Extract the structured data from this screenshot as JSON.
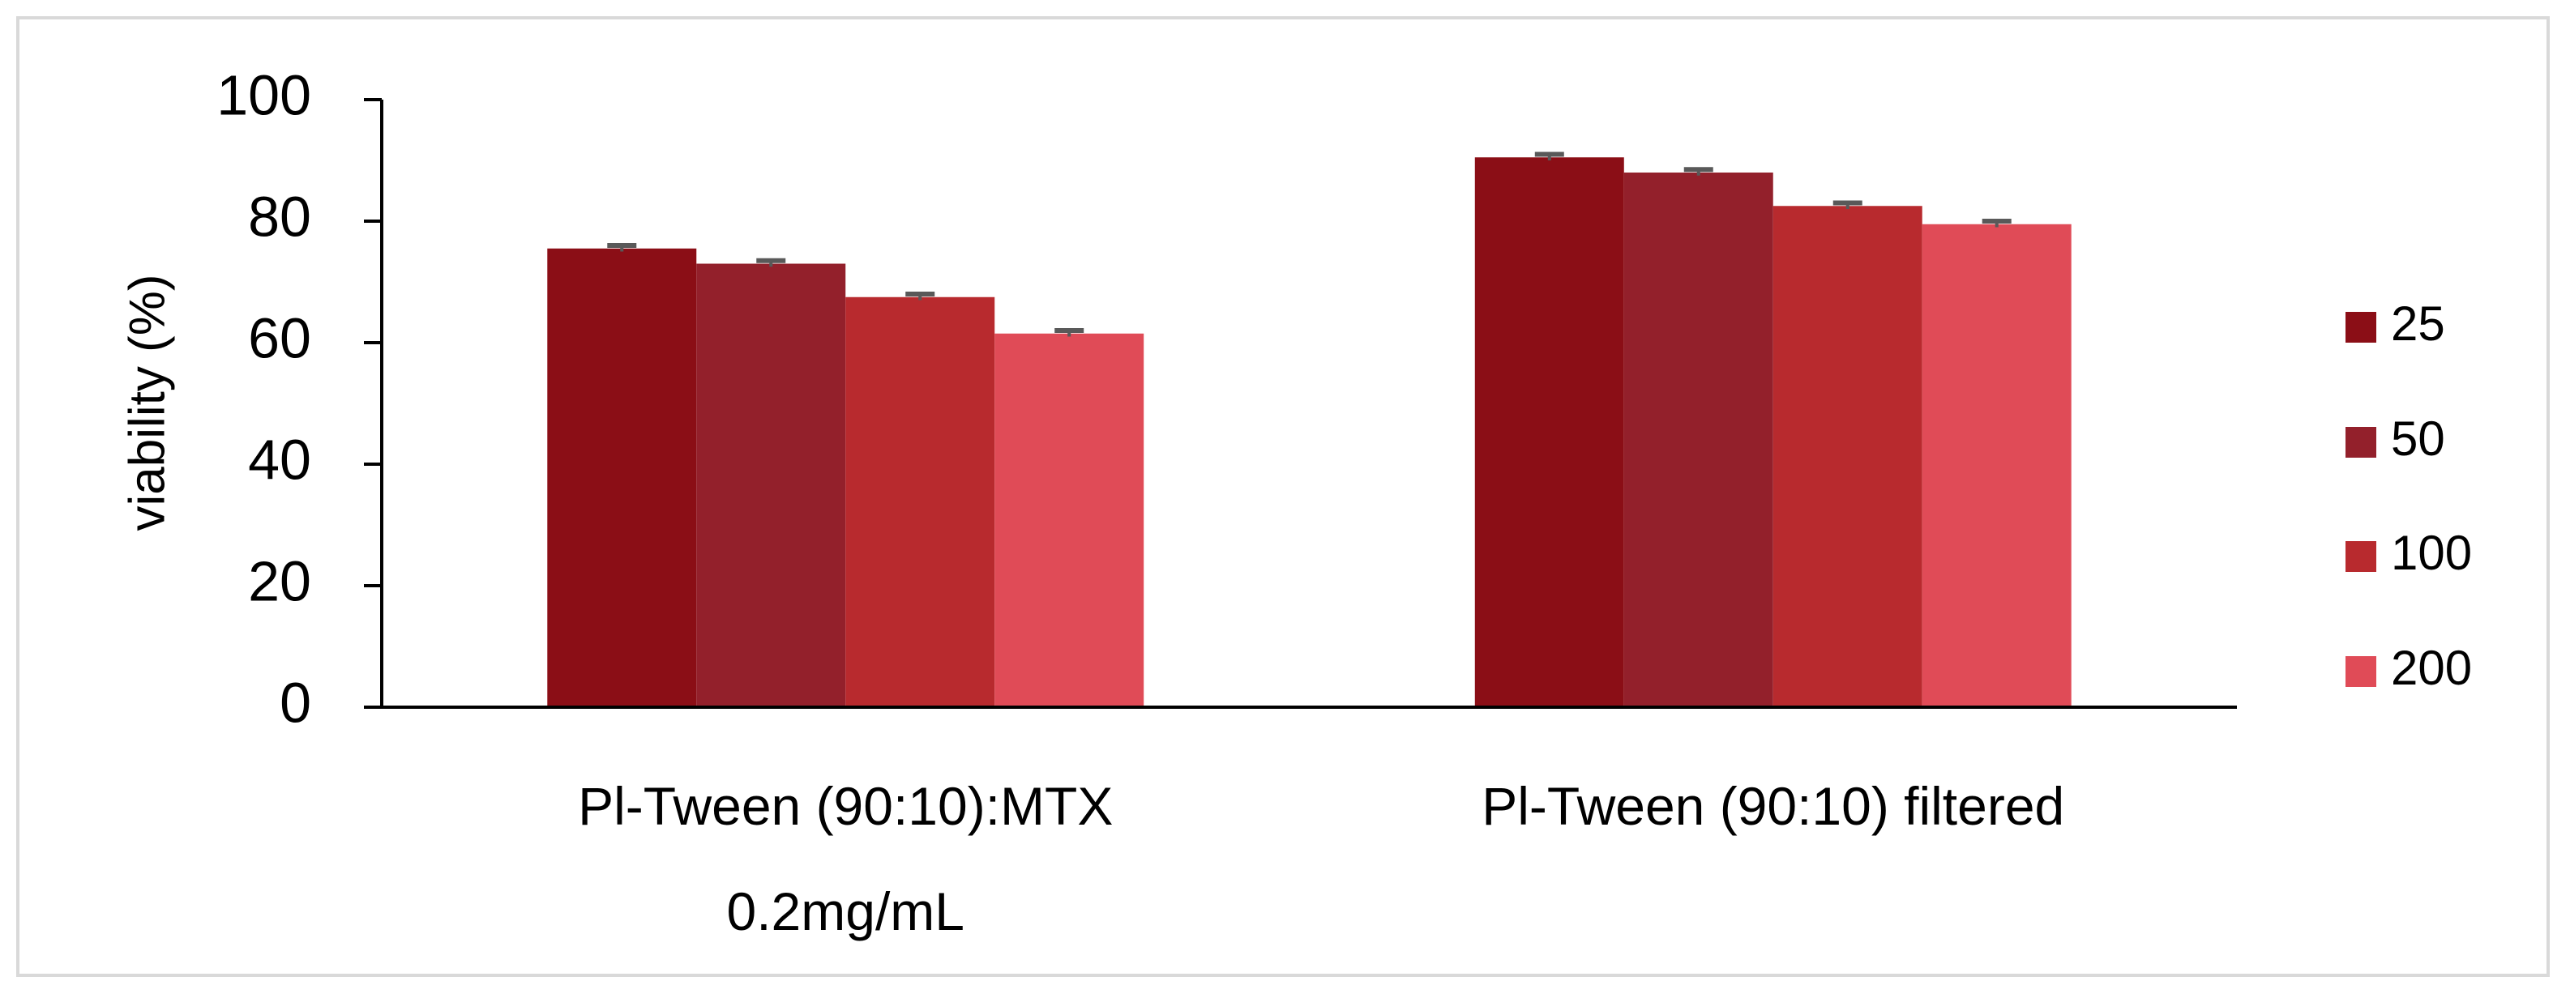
{
  "chart_data": {
    "type": "bar",
    "ylabel": "viability (%)",
    "categories": [
      "Pl-Tween (90:10):MTX\n0.2mg/mL",
      "Pl-Tween (90:10) filtered"
    ],
    "series": [
      {
        "name": "25",
        "color": "#8b0e16",
        "values": [
          75.5,
          90.5
        ],
        "errors": [
          0.5,
          0.5
        ]
      },
      {
        "name": "50",
        "color": "#93202b",
        "values": [
          73,
          88
        ],
        "errors": [
          0.5,
          0.5
        ]
      },
      {
        "name": "100",
        "color": "#b82a2e",
        "values": [
          67.5,
          82.5
        ],
        "errors": [
          0.5,
          0.5
        ]
      },
      {
        "name": "200",
        "color": "#e04b57",
        "values": [
          61.5,
          79.5
        ],
        "errors": [
          0.5,
          0.5
        ]
      }
    ],
    "ylim": [
      0,
      100
    ],
    "yticks": [
      0,
      20,
      40,
      60,
      80,
      100
    ],
    "grid": false,
    "legend": "right"
  }
}
